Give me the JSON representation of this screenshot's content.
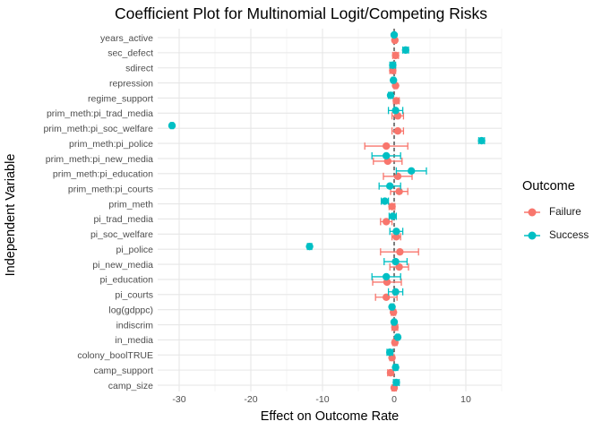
{
  "chart_data": {
    "type": "scatter",
    "title": "Coefficient Plot for Multinomial Logit/Competing Risks",
    "xlabel": "Effect on Outcome Rate",
    "ylabel": "Independent Variable",
    "xlim": [
      -33,
      15
    ],
    "xticks": [
      -30,
      -20,
      -10,
      0,
      10
    ],
    "grid": true,
    "reference_line": 0,
    "legend": {
      "title": "Outcome",
      "position": "right"
    },
    "categories": [
      "years_active",
      "sec_defect",
      "sdirect",
      "repression",
      "regime_support",
      "prim_meth:pi_trad_media",
      "prim_meth:pi_soc_welfare",
      "prim_meth:pi_police",
      "prim_meth:pi_new_media",
      "prim_meth:pi_education",
      "prim_meth:pi_courts",
      "prim_meth",
      "pi_trad_media",
      "pi_soc_welfare",
      "pi_police",
      "pi_new_media",
      "pi_education",
      "pi_courts",
      "log(gdppc)",
      "indiscrim",
      "in_media",
      "colony_boolTRUE",
      "camp_support",
      "camp_size"
    ],
    "series": [
      {
        "name": "Failure",
        "color": "#F8766D",
        "estimate": [
          0.1,
          0.2,
          -0.2,
          0.2,
          0.3,
          0.5,
          0.5,
          -1.1,
          -0.9,
          0.5,
          0.7,
          -0.3,
          -1.1,
          0.3,
          0.8,
          0.7,
          -1.0,
          -1.1,
          -0.1,
          0.1,
          0.1,
          -0.3,
          -0.5,
          0.0
        ],
        "lower": [
          -0.1,
          -0.2,
          -0.6,
          0.0,
          -0.1,
          -0.3,
          -0.3,
          -4.1,
          -2.9,
          -1.5,
          -0.5,
          -0.7,
          -1.9,
          -0.3,
          -1.9,
          -0.6,
          -3.0,
          -2.6,
          -0.4,
          -0.3,
          -0.2,
          -0.6,
          -0.9,
          -0.3
        ],
        "upper": [
          0.3,
          0.6,
          0.2,
          0.4,
          0.7,
          1.3,
          1.3,
          1.9,
          1.1,
          2.5,
          1.9,
          0.1,
          -0.3,
          0.9,
          3.4,
          2.0,
          1.0,
          0.4,
          0.2,
          0.5,
          0.4,
          0.0,
          -0.1,
          0.3
        ]
      },
      {
        "name": "Success",
        "color": "#00BFC4",
        "estimate": [
          0.0,
          1.6,
          -0.2,
          -0.1,
          -0.5,
          0.2,
          -31.0,
          12.2,
          -1.1,
          2.4,
          -0.6,
          -1.3,
          -0.2,
          0.3,
          -11.8,
          0.2,
          -1.1,
          0.2,
          -0.3,
          0.0,
          0.5,
          -0.6,
          0.2,
          0.3
        ],
        "lower": [
          -0.1,
          1.2,
          -0.6,
          -0.3,
          -0.8,
          -0.8,
          -31.2,
          11.8,
          -3.1,
          0.3,
          -2.1,
          -1.8,
          -0.7,
          -0.6,
          -12.1,
          -1.4,
          -3.1,
          -0.8,
          -0.5,
          -0.2,
          0.3,
          -1.0,
          -0.1,
          -0.1
        ],
        "upper": [
          0.1,
          2.0,
          0.2,
          0.1,
          -0.2,
          1.2,
          -30.8,
          12.6,
          0.9,
          4.5,
          0.9,
          -0.8,
          0.3,
          1.2,
          -11.5,
          1.8,
          0.9,
          1.2,
          -0.1,
          0.2,
          0.7,
          -0.2,
          0.5,
          0.7
        ]
      }
    ]
  }
}
